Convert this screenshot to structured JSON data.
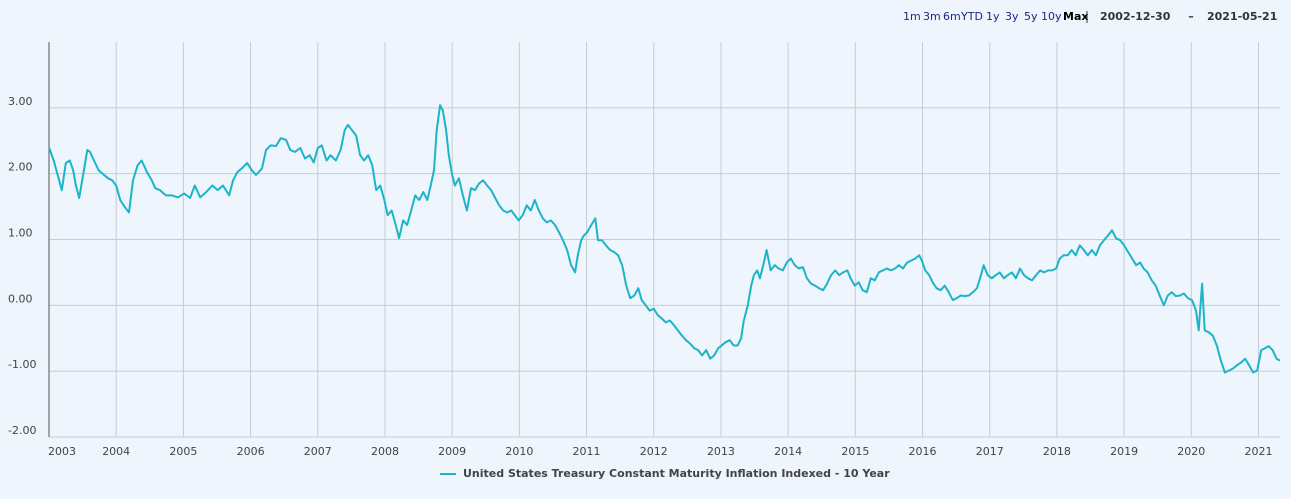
{
  "range_selector": {
    "buttons": [
      "1m",
      "3m",
      "6m",
      "YTD",
      "1y",
      "3y",
      "5y",
      "10y",
      "Max"
    ],
    "from": "2002-12-30",
    "separator": "–",
    "to": "2021-05-21"
  },
  "chart_data": {
    "type": "line",
    "x": [
      2003.0,
      2003.07,
      2003.13,
      2003.19,
      2003.25,
      2003.31,
      2003.36,
      2003.4,
      2003.45,
      2003.52,
      2003.57,
      2003.61,
      2003.67,
      2003.74,
      2003.82,
      2003.88,
      2003.94,
      2004.0,
      2004.06,
      2004.13,
      2004.19,
      2004.25,
      2004.32,
      2004.38,
      2004.46,
      2004.53,
      2004.58,
      2004.65,
      2004.74,
      2004.83,
      2004.92,
      2005.01,
      2005.1,
      2005.17,
      2005.25,
      2005.34,
      2005.43,
      2005.51,
      2005.59,
      2005.68,
      2005.74,
      2005.8,
      2005.87,
      2005.95,
      2006.02,
      2006.08,
      2006.17,
      2006.23,
      2006.3,
      2006.38,
      2006.45,
      2006.53,
      2006.59,
      2006.66,
      2006.74,
      2006.81,
      2006.88,
      2006.94,
      2007.0,
      2007.06,
      2007.13,
      2007.19,
      2007.27,
      2007.34,
      2007.4,
      2007.45,
      2007.51,
      2007.57,
      2007.63,
      2007.69,
      2007.75,
      2007.81,
      2007.87,
      2007.93,
      2007.99,
      2008.04,
      2008.1,
      2008.16,
      2008.21,
      2008.27,
      2008.33,
      2008.39,
      2008.45,
      2008.51,
      2008.57,
      2008.63,
      2008.68,
      2008.73,
      2008.77,
      2008.82,
      2008.86,
      2008.91,
      2008.95,
      2009.0,
      2009.04,
      2009.1,
      2009.16,
      2009.22,
      2009.28,
      2009.34,
      2009.4,
      2009.46,
      2009.52,
      2009.58,
      2009.64,
      2009.7,
      2009.76,
      2009.82,
      2009.88,
      2009.93,
      2009.99,
      2010.05,
      2010.11,
      2010.17,
      2010.23,
      2010.29,
      2010.35,
      2010.41,
      2010.47,
      2010.53,
      2010.59,
      2010.65,
      2010.71,
      2010.77,
      2010.83,
      2010.87,
      2010.92,
      2010.96,
      2011.01,
      2011.07,
      2011.13,
      2011.17,
      2011.23,
      2011.29,
      2011.35,
      2011.41,
      2011.47,
      2011.53,
      2011.59,
      2011.65,
      2011.71,
      2011.77,
      2011.82,
      2011.88,
      2011.94,
      2012.0,
      2012.06,
      2012.12,
      2012.18,
      2012.24,
      2012.3,
      2012.36,
      2012.42,
      2012.48,
      2012.54,
      2012.6,
      2012.66,
      2012.72,
      2012.78,
      2012.84,
      2012.9,
      2012.96,
      2013.01,
      2013.07,
      2013.13,
      2013.19,
      2013.25,
      2013.3,
      2013.34,
      2013.4,
      2013.45,
      2013.49,
      2013.54,
      2013.58,
      2013.64,
      2013.68,
      2013.74,
      2013.8,
      2013.86,
      2013.92,
      2013.98,
      2014.04,
      2014.1,
      2014.16,
      2014.22,
      2014.28,
      2014.34,
      2014.4,
      2014.46,
      2014.52,
      2014.58,
      2014.64,
      2014.7,
      2014.76,
      2014.82,
      2014.88,
      2014.93,
      2014.99,
      2015.05,
      2015.11,
      2015.17,
      2015.23,
      2015.29,
      2015.35,
      2015.41,
      2015.47,
      2015.53,
      2015.59,
      2015.65,
      2015.71,
      2015.77,
      2015.83,
      2015.89,
      2015.95,
      2015.99,
      2016.04,
      2016.1,
      2016.15,
      2016.21,
      2016.27,
      2016.33,
      2016.39,
      2016.45,
      2016.51,
      2016.57,
      2016.63,
      2016.69,
      2016.75,
      2016.81,
      2016.87,
      2016.91,
      2016.97,
      2017.03,
      2017.09,
      2017.15,
      2017.21,
      2017.27,
      2017.33,
      2017.39,
      2017.45,
      2017.51,
      2017.57,
      2017.63,
      2017.69,
      2017.75,
      2017.81,
      2017.87,
      2017.93,
      2017.99,
      2018.04,
      2018.1,
      2018.16,
      2018.22,
      2018.28,
      2018.34,
      2018.4,
      2018.46,
      2018.52,
      2018.58,
      2018.64,
      2018.7,
      2018.76,
      2018.82,
      2018.88,
      2018.94,
      2019.0,
      2019.06,
      2019.12,
      2019.18,
      2019.24,
      2019.29,
      2019.35,
      2019.41,
      2019.47,
      2019.53,
      2019.59,
      2019.65,
      2019.71,
      2019.77,
      2019.83,
      2019.89,
      2019.95,
      2020.01,
      2020.07,
      2020.11,
      2020.16,
      2020.2,
      2020.26,
      2020.32,
      2020.38,
      2020.44,
      2020.5,
      2020.56,
      2020.62,
      2020.68,
      2020.74,
      2020.8,
      2020.86,
      2020.92,
      2020.98,
      2021.04,
      2021.1,
      2021.15,
      2021.21,
      2021.27,
      2021.32
    ],
    "series": [
      {
        "name": "United States Treasury Constant Maturity Inflation Indexed - 10 Year",
        "color": "#1cb4c9",
        "values": [
          2.4,
          2.2,
          1.98,
          1.75,
          2.16,
          2.2,
          2.05,
          1.82,
          1.63,
          2.05,
          2.36,
          2.33,
          2.2,
          2.05,
          1.98,
          1.93,
          1.9,
          1.82,
          1.6,
          1.49,
          1.41,
          1.9,
          2.13,
          2.2,
          2.02,
          1.9,
          1.78,
          1.75,
          1.67,
          1.67,
          1.64,
          1.7,
          1.63,
          1.82,
          1.64,
          1.72,
          1.82,
          1.75,
          1.82,
          1.67,
          1.9,
          2.02,
          2.08,
          2.16,
          2.05,
          1.98,
          2.08,
          2.36,
          2.43,
          2.42,
          2.54,
          2.51,
          2.36,
          2.33,
          2.39,
          2.23,
          2.28,
          2.17,
          2.39,
          2.43,
          2.2,
          2.28,
          2.2,
          2.36,
          2.66,
          2.74,
          2.66,
          2.58,
          2.28,
          2.2,
          2.28,
          2.13,
          1.75,
          1.82,
          1.6,
          1.37,
          1.44,
          1.22,
          1.02,
          1.29,
          1.22,
          1.44,
          1.67,
          1.6,
          1.72,
          1.6,
          1.82,
          2.05,
          2.66,
          3.04,
          2.96,
          2.66,
          2.28,
          1.98,
          1.82,
          1.93,
          1.67,
          1.44,
          1.78,
          1.75,
          1.85,
          1.9,
          1.82,
          1.75,
          1.63,
          1.52,
          1.44,
          1.41,
          1.44,
          1.37,
          1.29,
          1.37,
          1.52,
          1.44,
          1.6,
          1.44,
          1.32,
          1.26,
          1.29,
          1.22,
          1.11,
          0.99,
          0.84,
          0.61,
          0.5,
          0.76,
          0.99,
          1.06,
          1.11,
          1.22,
          1.32,
          0.99,
          0.99,
          0.91,
          0.84,
          0.81,
          0.76,
          0.61,
          0.3,
          0.11,
          0.15,
          0.26,
          0.08,
          0.0,
          -0.08,
          -0.05,
          -0.15,
          -0.2,
          -0.26,
          -0.23,
          -0.3,
          -0.38,
          -0.46,
          -0.53,
          -0.58,
          -0.65,
          -0.68,
          -0.76,
          -0.68,
          -0.81,
          -0.76,
          -0.65,
          -0.61,
          -0.56,
          -0.53,
          -0.61,
          -0.61,
          -0.5,
          -0.23,
          0.0,
          0.3,
          0.46,
          0.53,
          0.41,
          0.65,
          0.84,
          0.53,
          0.61,
          0.56,
          0.53,
          0.65,
          0.71,
          0.61,
          0.56,
          0.58,
          0.41,
          0.33,
          0.3,
          0.26,
          0.23,
          0.33,
          0.46,
          0.53,
          0.46,
          0.5,
          0.53,
          0.41,
          0.3,
          0.35,
          0.23,
          0.2,
          0.41,
          0.38,
          0.5,
          0.53,
          0.56,
          0.53,
          0.56,
          0.61,
          0.56,
          0.65,
          0.68,
          0.71,
          0.76,
          0.68,
          0.53,
          0.46,
          0.35,
          0.26,
          0.23,
          0.3,
          0.2,
          0.08,
          0.11,
          0.15,
          0.14,
          0.15,
          0.2,
          0.26,
          0.46,
          0.61,
          0.46,
          0.41,
          0.46,
          0.5,
          0.41,
          0.46,
          0.5,
          0.41,
          0.56,
          0.46,
          0.41,
          0.38,
          0.46,
          0.53,
          0.5,
          0.53,
          0.53,
          0.56,
          0.71,
          0.76,
          0.76,
          0.84,
          0.76,
          0.91,
          0.84,
          0.76,
          0.84,
          0.76,
          0.91,
          0.99,
          1.06,
          1.14,
          1.02,
          0.99,
          0.91,
          0.81,
          0.71,
          0.61,
          0.65,
          0.56,
          0.5,
          0.38,
          0.3,
          0.15,
          0.0,
          0.15,
          0.2,
          0.14,
          0.15,
          0.18,
          0.11,
          0.08,
          -0.08,
          -0.38,
          0.33,
          -0.38,
          -0.41,
          -0.46,
          -0.61,
          -0.84,
          -1.02,
          -0.99,
          -0.96,
          -0.91,
          -0.87,
          -0.81,
          -0.91,
          -1.02,
          -0.99,
          -0.68,
          -0.65,
          -0.62,
          -0.68,
          -0.81,
          -0.84
        ]
      }
    ],
    "xlim": [
      2003,
      2021.32
    ],
    "xticks": [
      2003,
      2004,
      2005,
      2006,
      2007,
      2008,
      2009,
      2010,
      2011,
      2012,
      2013,
      2014,
      2015,
      2016,
      2017,
      2018,
      2019,
      2020,
      2021
    ],
    "ylim": [
      -2,
      4
    ],
    "yticks": [
      {
        "value": -2,
        "label": "-2.00"
      },
      {
        "value": -1,
        "label": "-1.00"
      },
      {
        "value": 0,
        "label": "0.00"
      },
      {
        "value": 1,
        "label": "1.00"
      },
      {
        "value": 2,
        "label": "2.00"
      },
      {
        "value": 3,
        "label": "3.00"
      }
    ],
    "grid": true,
    "legend": "bottom"
  }
}
